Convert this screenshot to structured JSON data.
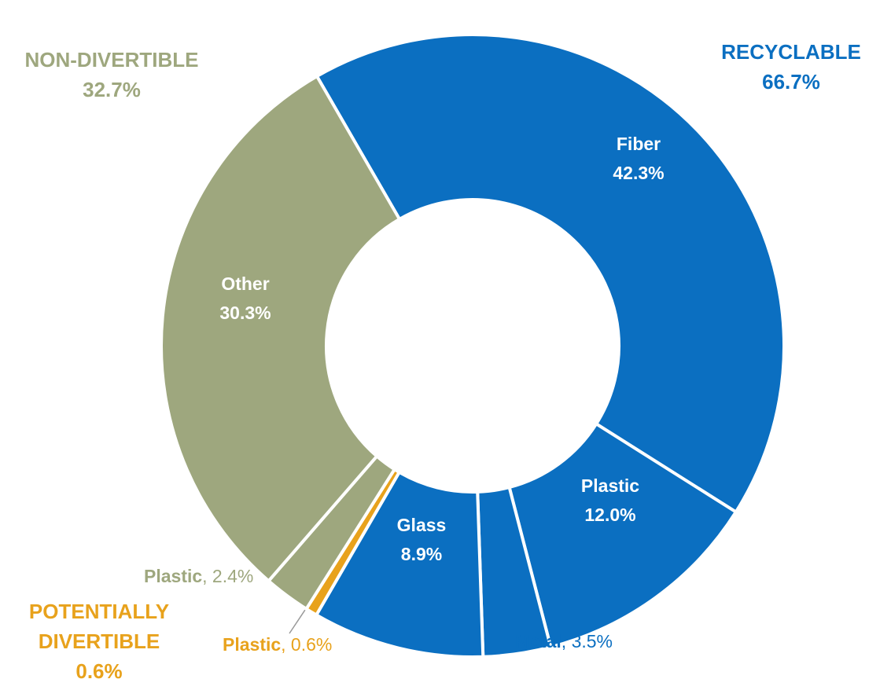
{
  "chart_data": {
    "type": "donut",
    "categories": [
      "Fiber",
      "Plastic",
      "Metal",
      "Glass",
      "Plastic",
      "Plastic",
      "Other"
    ],
    "values": [
      42.3,
      12.0,
      3.5,
      8.9,
      0.6,
      2.4,
      30.3
    ],
    "value_labels": [
      "42.3%",
      "12.0%",
      ", 3.5%",
      "8.9%",
      ", 0.6%",
      ", 2.4%",
      "30.3%"
    ],
    "colors": [
      "#0b6fc1",
      "#0b6fc1",
      "#0b6fc1",
      "#0b6fc1",
      "#e8a21c",
      "#9ea77e",
      "#9ea77e"
    ],
    "groups": [
      {
        "name": "RECYCLABLE",
        "value": 66.7,
        "value_label": "66.7%",
        "color": "#0b6fc1"
      },
      {
        "name": "POTENTIALLY DIVERTIBLE",
        "value": 0.6,
        "value_label": "0.6%",
        "color": "#e8a21c"
      },
      {
        "name": "NON-DIVERTIBLE",
        "value": 32.7,
        "value_label": "32.7%",
        "color": "#9ea77e"
      }
    ]
  }
}
